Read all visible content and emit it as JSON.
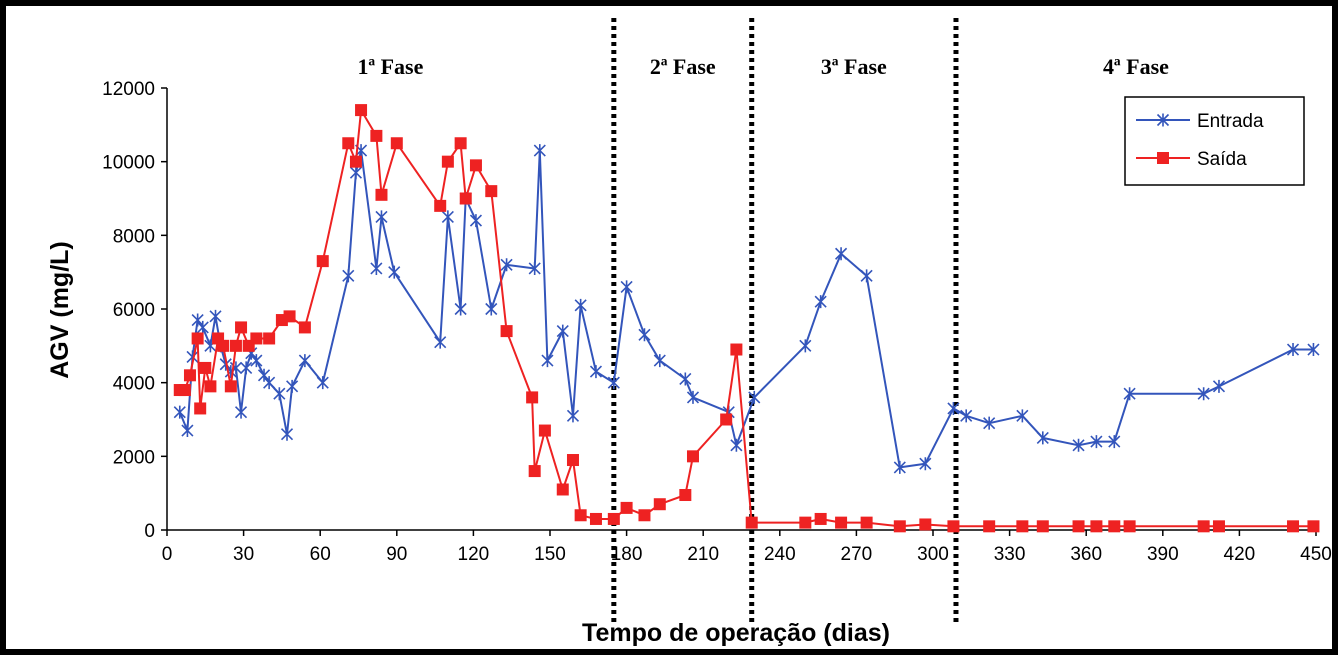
{
  "chart_data": {
    "type": "line",
    "xlabel": "Tempo de operação (dias)",
    "ylabel": "AGV (mg/L)",
    "xlim": [
      0,
      450
    ],
    "ylim": [
      0,
      12000
    ],
    "xticks": [
      0,
      30,
      60,
      90,
      120,
      150,
      180,
      210,
      240,
      270,
      300,
      330,
      360,
      390,
      420,
      450
    ],
    "yticks": [
      0,
      2000,
      4000,
      6000,
      8000,
      10000,
      12000
    ],
    "grid": false,
    "legend_position": "top-right",
    "phases": [
      {
        "label": "1ª Fase",
        "start": 0,
        "end": 175
      },
      {
        "label": "2ª Fase",
        "start": 175,
        "end": 229
      },
      {
        "label": "3ª Fase",
        "start": 229,
        "end": 309
      },
      {
        "label": "4ª Fase",
        "start": 309,
        "end": 450
      }
    ],
    "series": [
      {
        "name": "Entrada",
        "color": "#3355bb",
        "marker": "asterisk",
        "x": [
          5,
          8,
          10,
          12,
          14,
          17,
          19,
          21,
          23,
          25,
          27,
          29,
          31,
          33,
          35,
          38,
          40,
          44,
          47,
          49,
          54,
          61,
          71,
          74,
          76,
          82,
          84,
          89,
          107,
          110,
          115,
          117,
          121,
          127,
          133,
          144,
          146,
          149,
          155,
          159,
          162,
          168,
          175,
          180,
          187,
          193,
          203,
          206,
          220,
          223,
          230,
          250,
          256,
          264,
          274,
          287,
          297,
          308,
          313,
          322,
          335,
          343,
          357,
          364,
          371,
          377,
          406,
          412,
          441,
          449
        ],
        "y": [
          3200,
          2700,
          4700,
          5700,
          5500,
          5000,
          5800,
          5000,
          4500,
          4300,
          4400,
          3200,
          4400,
          4800,
          4600,
          4200,
          4000,
          3700,
          2600,
          3900,
          4600,
          4000,
          6900,
          9700,
          10300,
          7100,
          8500,
          7000,
          5100,
          8500,
          6000,
          9000,
          8400,
          6000,
          7200,
          7100,
          10300,
          4600,
          5400,
          3100,
          6100,
          4300,
          4000,
          6600,
          5300,
          4600,
          4100,
          3600,
          3200,
          2300,
          3600,
          5000,
          6200,
          7500,
          6900,
          1700,
          1800,
          3300,
          3100,
          2900,
          3100,
          2500,
          2300,
          2400,
          2400,
          3700,
          3700,
          3900,
          4900,
          4900
        ]
      },
      {
        "name": "Saída",
        "color": "#ee2222",
        "marker": "square",
        "x": [
          5,
          7,
          9,
          12,
          13,
          15,
          17,
          20,
          22,
          25,
          27,
          29,
          32,
          35,
          40,
          45,
          48,
          54,
          61,
          71,
          74,
          76,
          82,
          84,
          90,
          107,
          110,
          115,
          117,
          121,
          127,
          133,
          143,
          144,
          148,
          155,
          159,
          162,
          168,
          175,
          180,
          187,
          193,
          203,
          206,
          219,
          223,
          229,
          250,
          256,
          264,
          274,
          287,
          297,
          308,
          322,
          335,
          343,
          357,
          364,
          371,
          377,
          406,
          412,
          441,
          449
        ],
        "y": [
          3800,
          3800,
          4200,
          5200,
          3300,
          4400,
          3900,
          5200,
          5000,
          3900,
          5000,
          5500,
          5000,
          5200,
          5200,
          5700,
          5800,
          5500,
          7300,
          10500,
          10000,
          11400,
          10700,
          9100,
          10500,
          8800,
          10000,
          10500,
          9000,
          9900,
          9200,
          5400,
          3600,
          1600,
          2700,
          1100,
          1900,
          400,
          300,
          300,
          600,
          400,
          700,
          950,
          2000,
          3000,
          4900,
          200,
          200,
          300,
          200,
          200,
          100,
          150,
          100,
          100,
          100,
          100,
          100,
          100,
          100,
          100,
          100,
          100,
          100,
          100
        ]
      }
    ]
  }
}
